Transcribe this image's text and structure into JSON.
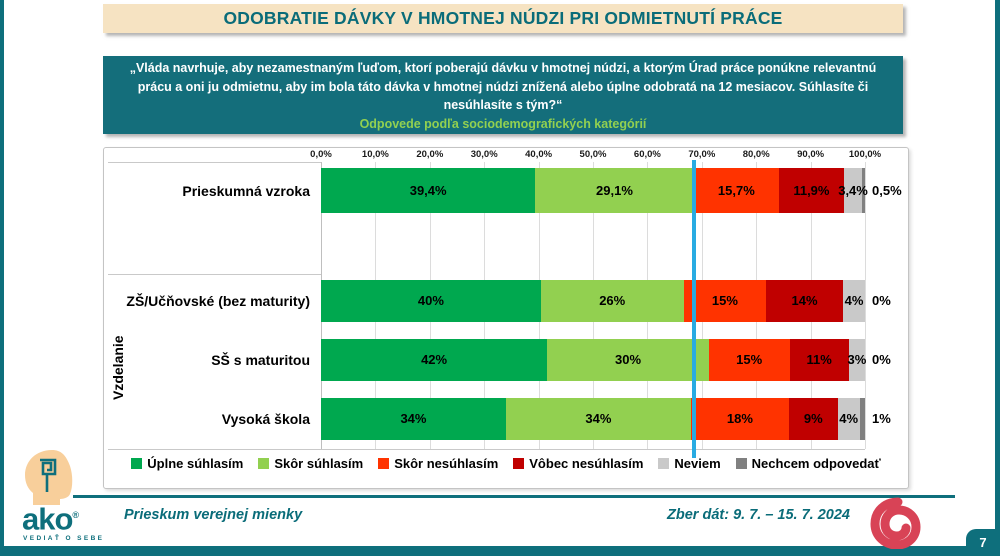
{
  "page": {
    "number": "7"
  },
  "header": {
    "title": "ODOBRATIE DÁVKY V HMOTNEJ NÚDZI PRI ODMIETNUTÍ PRÁCE"
  },
  "question_box": {
    "text": "„Vláda navrhuje, aby nezamestnaným ľuďom, ktorí poberajú dávku v hmotnej núdzi, a ktorým Úrad práce ponúkne relevantnú prácu a oni ju odmietnu, aby im bola táto dávka v hmotnej núdzi znížená alebo úplne odobratá na 12 mesiacov. Súhlasíte či nesúhlasíte s tým?“",
    "subtitle": "Odpovede podľa sociodemografických kategórií"
  },
  "chart_data": {
    "type": "bar",
    "stacked": true,
    "orientation": "horizontal",
    "title": "ODOBRATIE DÁVKY V HMOTNEJ NÚDZI PRI ODMIETNUTÍ PRÁCE",
    "group_label": "Vzdelanie",
    "categories": [
      "Prieskumná vzroka",
      "ZŠ/Učňovské (bez maturity)",
      "SŠ s maturitou",
      "Vysoká škola"
    ],
    "series": [
      {
        "name": "Úplne súhlasím",
        "color": "#00A84F",
        "values": [
          39.4,
          40,
          42,
          34
        ],
        "labels": [
          "39,4%",
          "40%",
          "42%",
          "34%"
        ]
      },
      {
        "name": "Skôr súhlasím",
        "color": "#92D050",
        "values": [
          29.1,
          26,
          30,
          34
        ],
        "labels": [
          "29,1%",
          "26%",
          "30%",
          "34%"
        ]
      },
      {
        "name": "Skôr nesúhlasím",
        "color": "#FF3300",
        "values": [
          15.7,
          15,
          15,
          18
        ],
        "labels": [
          "15,7%",
          "15%",
          "15%",
          "18%"
        ]
      },
      {
        "name": "Vôbec nesúhlasím",
        "color": "#C00000",
        "values": [
          11.9,
          14,
          11,
          9
        ],
        "labels": [
          "11,9%",
          "14%",
          "11%",
          "9%"
        ]
      },
      {
        "name": "Neviem",
        "color": "#C9C9C9",
        "values": [
          3.4,
          4,
          3,
          4
        ],
        "labels": [
          "3,4%",
          "4%",
          "3%",
          "4%"
        ]
      },
      {
        "name": "Nechcem odpovedať",
        "color": "#808080",
        "values": [
          0.5,
          0,
          0,
          1
        ],
        "labels": [
          "0,5%",
          "0%",
          "0%",
          "1%"
        ]
      }
    ],
    "x_ticks": [
      "0,0%",
      "10,0%",
      "20,0%",
      "30,0%",
      "40,0%",
      "50,0%",
      "60,0%",
      "70,0%",
      "80,0%",
      "90,0%",
      "100,0%"
    ],
    "xlim": [
      0,
      100
    ],
    "gridlines": true,
    "legend_position": "bottom",
    "reference_line": {
      "x": 68.5,
      "color": "#29ABE2"
    }
  },
  "footer": {
    "left": "Prieskum verejnej mienky",
    "right": "Zber dát: 9. 7. – 15. 7. 2024"
  },
  "logo": {
    "word": "ako",
    "registered": "®",
    "tagline": "VEDIAŤ O SEBE"
  }
}
